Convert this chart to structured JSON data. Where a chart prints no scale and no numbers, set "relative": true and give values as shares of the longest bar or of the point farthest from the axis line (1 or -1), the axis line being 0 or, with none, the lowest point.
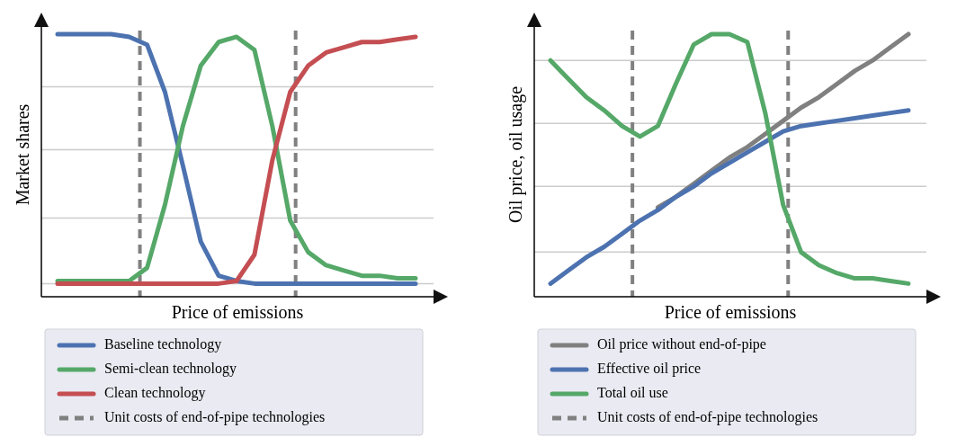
{
  "chart_data": [
    {
      "type": "line",
      "xlabel": "Price of emissions",
      "ylabel": "Market shares",
      "relative": true,
      "categories": [
        null,
        null,
        null,
        null,
        null,
        null,
        null,
        null,
        null,
        null,
        null,
        null,
        null,
        null,
        null,
        null,
        null,
        null,
        null,
        null,
        null
      ],
      "legend": "bottom",
      "annotations": [
        "Unit costs of end-of-pipe technologies"
      ],
      "series": [
        {
          "name": "Baseline technology",
          "color": "#4c72b0",
          "values": [
            1.0,
            1.0,
            1.0,
            1.0,
            0.99,
            0.96,
            0.78,
            0.5,
            0.21,
            0.08,
            0.06,
            0.05,
            0.05,
            0.05,
            0.05,
            0.05,
            0.05,
            0.05,
            0.05,
            0.05,
            0.05
          ]
        },
        {
          "name": "Semi-clean technology",
          "color": "#55a868",
          "values": [
            0.06,
            0.06,
            0.06,
            0.06,
            0.06,
            0.11,
            0.35,
            0.65,
            0.88,
            0.97,
            0.99,
            0.94,
            0.65,
            0.29,
            0.17,
            0.12,
            0.1,
            0.08,
            0.08,
            0.07,
            0.07
          ]
        },
        {
          "name": "Clean technology",
          "color": "#c44e52",
          "values": [
            0.05,
            0.05,
            0.05,
            0.05,
            0.05,
            0.05,
            0.05,
            0.05,
            0.05,
            0.05,
            0.06,
            0.16,
            0.52,
            0.78,
            0.88,
            0.93,
            0.95,
            0.97,
            0.97,
            0.98,
            0.99
          ]
        }
      ]
    },
    {
      "type": "line",
      "xlabel": "Price of emissions",
      "ylabel": "Oil price, oil usage",
      "relative": true,
      "categories": [
        null,
        null,
        null,
        null,
        null,
        null,
        null,
        null,
        null,
        null,
        null,
        null,
        null,
        null,
        null,
        null,
        null,
        null,
        null,
        null,
        null
      ],
      "legend": "bottom",
      "annotations": [
        "Unit costs of end-of-pipe technologies"
      ],
      "series": [
        {
          "name": "Oil price without end-of-pipe",
          "color": "#808080",
          "values": [
            null,
            null,
            null,
            null,
            null,
            null,
            0.34,
            0.38,
            0.43,
            0.48,
            0.53,
            0.57,
            0.62,
            0.67,
            0.72,
            0.76,
            0.81,
            0.86,
            0.9,
            0.95,
            1.0
          ]
        },
        {
          "name": "Effective oil price",
          "color": "#4c72b0",
          "values": [
            0.05,
            0.1,
            0.15,
            0.19,
            0.24,
            0.29,
            0.33,
            0.38,
            0.42,
            0.47,
            0.51,
            0.55,
            0.59,
            0.63,
            0.65,
            0.66,
            0.67,
            0.68,
            0.69,
            0.7,
            0.71
          ]
        },
        {
          "name": "Total oil use",
          "color": "#55a868",
          "values": [
            0.9,
            0.83,
            0.76,
            0.71,
            0.65,
            0.61,
            0.65,
            0.81,
            0.96,
            1.0,
            1.0,
            0.97,
            0.7,
            0.35,
            0.17,
            0.12,
            0.09,
            0.07,
            0.07,
            0.06,
            0.05
          ]
        }
      ]
    }
  ]
}
